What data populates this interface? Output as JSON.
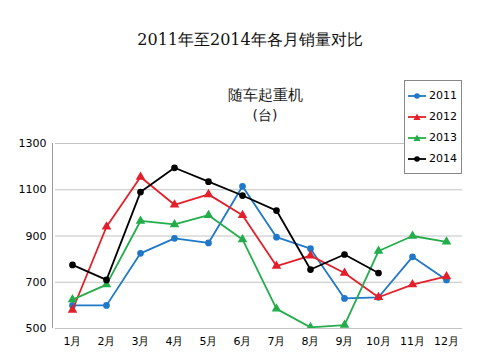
{
  "chart_data": {
    "type": "line",
    "title": "2011年至2014年各月销量对比",
    "subtitle": "随车起重机",
    "y_label": "(台)",
    "categories": [
      "1月",
      "2月",
      "3月",
      "4月",
      "5月",
      "6月",
      "7月",
      "8月",
      "9月",
      "10月",
      "11月",
      "12月"
    ],
    "series": [
      {
        "name": "2011",
        "color": "#1f78c8",
        "marker": "circle",
        "values": [
          600,
          600,
          825,
          890,
          870,
          1115,
          895,
          845,
          630,
          635,
          810,
          710
        ]
      },
      {
        "name": "2012",
        "color": "#e3202a",
        "marker": "triangle",
        "values": [
          580,
          940,
          1155,
          1035,
          1080,
          990,
          770,
          815,
          740,
          635,
          690,
          725
        ]
      },
      {
        "name": "2013",
        "color": "#23ad4b",
        "marker": "triangle",
        "values": [
          625,
          690,
          965,
          950,
          990,
          885,
          585,
          505,
          515,
          835,
          900,
          875
        ]
      },
      {
        "name": "2014",
        "color": "#000000",
        "marker": "circle",
        "values": [
          775,
          710,
          1090,
          1195,
          1135,
          1075,
          1010,
          755,
          820,
          740,
          null,
          null
        ]
      }
    ],
    "ylim": [
      500,
      1300
    ],
    "yticks": [
      500,
      700,
      900,
      1100,
      1300
    ],
    "grid": true,
    "legend": "top-right"
  }
}
